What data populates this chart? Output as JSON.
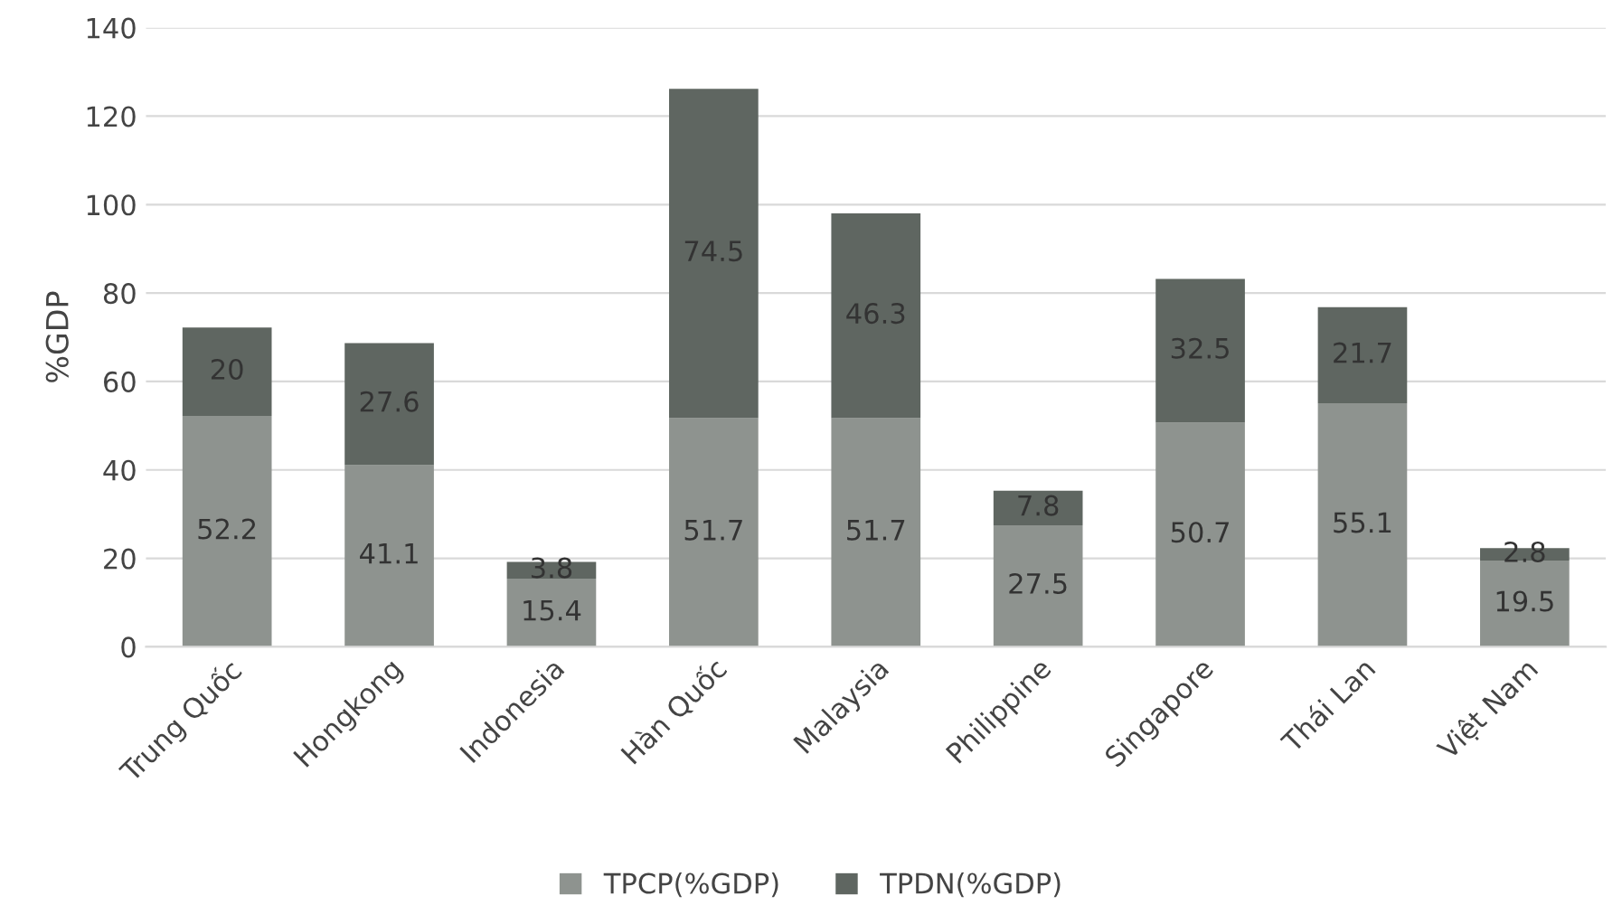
{
  "chart_data": {
    "type": "bar",
    "stacked": true,
    "ylabel": "%GDP",
    "categories": [
      "Trung Quốc",
      "Hongkong",
      "Indonesia",
      "Hàn Quốc",
      "Malaysia",
      "Philippine",
      "Singapore",
      "Thái Lan",
      "Việt Nam"
    ],
    "series": [
      {
        "name": "TPCP(%GDP)",
        "color": "#8e938f",
        "values": [
          52.2,
          41.1,
          15.4,
          51.7,
          51.7,
          27.5,
          50.7,
          55.1,
          19.5
        ]
      },
      {
        "name": "TPDN(%GDP)",
        "color": "#5f6661",
        "values": [
          20,
          27.6,
          3.8,
          74.5,
          46.3,
          7.8,
          32.5,
          21.7,
          2.8
        ]
      }
    ],
    "ylim": [
      0,
      140
    ],
    "yticks": [
      0,
      20,
      40,
      60,
      80,
      100,
      120,
      140
    ],
    "grid": "y",
    "legend": "bottom",
    "data_labels": true
  }
}
